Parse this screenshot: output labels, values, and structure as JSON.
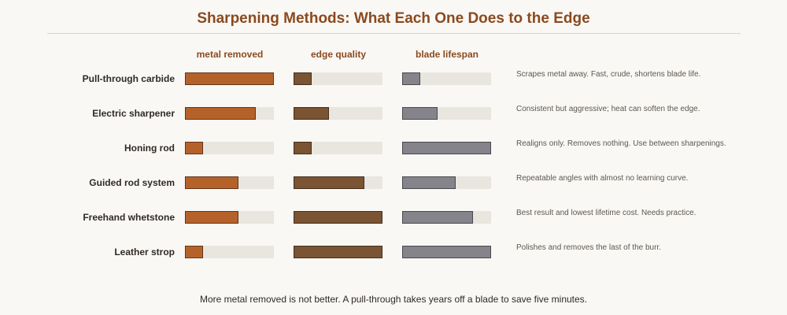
{
  "colors": {
    "metal_removed": "#b5622a",
    "edge_quality": "#7a5433",
    "blade_lifespan": "#85848b",
    "track": "#e9e5df"
  },
  "chart_data": {
    "type": "bar",
    "title": "Sharpening Methods: What Each One Does to the Edge",
    "metrics": [
      "metal removed",
      "edge quality",
      "blade lifespan"
    ],
    "scale": [
      0,
      1
    ],
    "rows": [
      {
        "method": "Pull-through carbide",
        "metal_removed": 1.0,
        "edge_quality": 0.2,
        "blade_lifespan": 0.2,
        "note": "Scrapes metal away. Fast, crude, shortens blade life."
      },
      {
        "method": "Electric sharpener",
        "metal_removed": 0.8,
        "edge_quality": 0.4,
        "blade_lifespan": 0.4,
        "note": "Consistent but aggressive; heat can soften the edge."
      },
      {
        "method": "Honing rod",
        "metal_removed": 0.2,
        "edge_quality": 0.2,
        "blade_lifespan": 1.0,
        "note": "Realigns only. Removes nothing. Use between sharpenings."
      },
      {
        "method": "Guided rod system",
        "metal_removed": 0.6,
        "edge_quality": 0.8,
        "blade_lifespan": 0.6,
        "note": "Repeatable angles with almost no learning curve."
      },
      {
        "method": "Freehand whetstone",
        "metal_removed": 0.6,
        "edge_quality": 1.0,
        "blade_lifespan": 0.8,
        "note": "Best result and lowest lifetime cost. Needs practice."
      },
      {
        "method": "Leather strop",
        "metal_removed": 0.2,
        "edge_quality": 1.0,
        "blade_lifespan": 1.0,
        "note": "Polishes and removes the last of the burr."
      }
    ],
    "footnote": "More metal removed is not better. A pull-through takes years off a blade to save five minutes."
  }
}
